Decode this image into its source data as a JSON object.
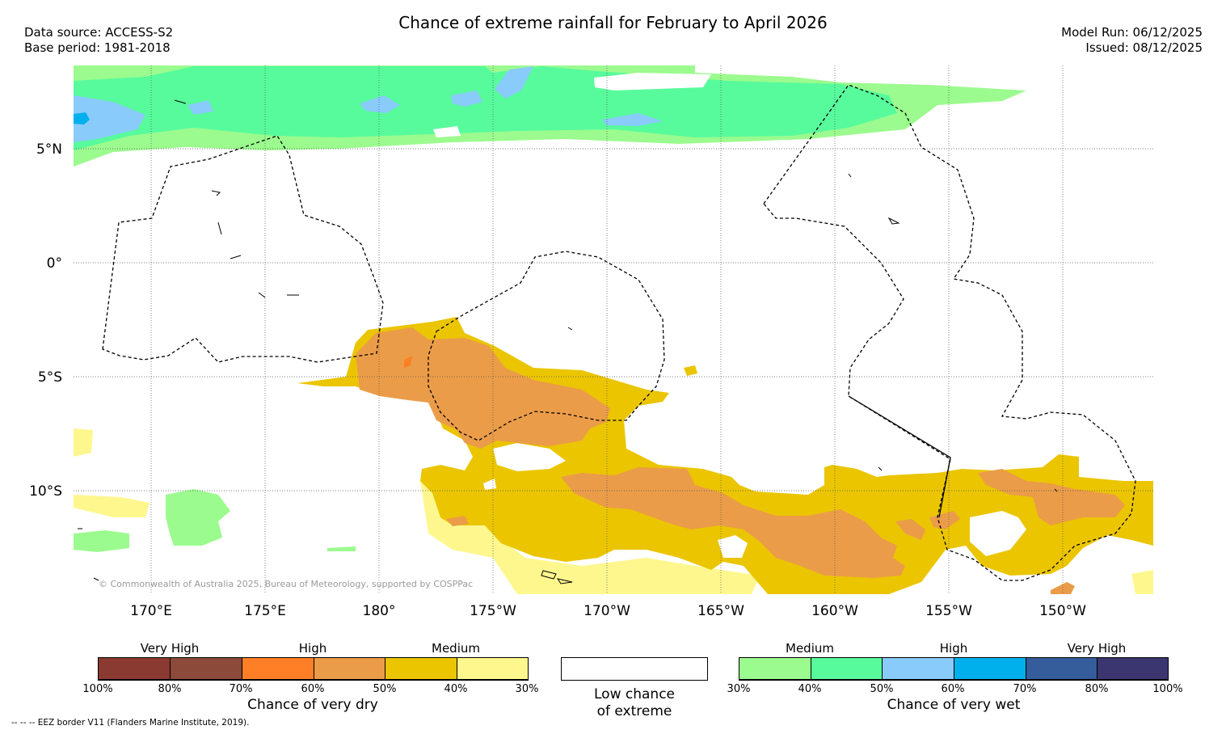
{
  "header": {
    "title": "Chance of extreme rainfall for February to April 2026",
    "data_source": "Data source: ACCESS-S2",
    "base_period": "Base period: 1981-2018",
    "model_run": "Model Run: 06/12/2025",
    "issued": "Issued: 08/12/2025"
  },
  "map": {
    "longitude_labels": [
      "170°E",
      "175°E",
      "180°",
      "175°W",
      "170°W",
      "165°W",
      "160°W",
      "155°W",
      "150°W"
    ],
    "latitude_labels": [
      "5°N",
      "0°",
      "5°S",
      "10°S"
    ],
    "copyright": "© Commonwealth of Australia 2025, Bureau of Meteorology, supported by COSPPac"
  },
  "legend": {
    "dry": {
      "group_labels": [
        "Very High",
        "High",
        "Medium"
      ],
      "ticks": [
        "100%",
        "80%",
        "70%",
        "60%",
        "50%",
        "40%",
        "30%"
      ],
      "colors": [
        "#8b3a32",
        "#8b4a3a",
        "#fe7f25",
        "#eb9c48",
        "#ebc500",
        "#fef78e"
      ],
      "caption": "Chance of very dry"
    },
    "low": {
      "caption_line1": "Low chance",
      "caption_line2": "of extreme"
    },
    "wet": {
      "group_labels": [
        "Medium",
        "High",
        "Very High"
      ],
      "ticks": [
        "30%",
        "40%",
        "50%",
        "60%",
        "70%",
        "80%",
        "100%"
      ],
      "colors": [
        "#9bfb8e",
        "#57fb9c",
        "#89cbfb",
        "#00b0ec",
        "#355c9b",
        "#3c3670"
      ],
      "caption": "Chance of very wet"
    },
    "eez_note": "-- -- -- EEZ border V11 (Flanders Marine Institute, 2019)."
  }
}
